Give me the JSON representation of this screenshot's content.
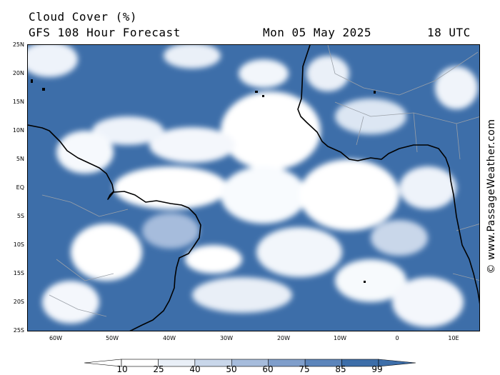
{
  "header": {
    "title": "Cloud Cover (%)",
    "subtitle": "GFS 108 Hour Forecast",
    "date": "Mon 05 May 2025",
    "time": "18 UTC"
  },
  "map": {
    "lat_labels": [
      "25N",
      "20N",
      "15N",
      "10N",
      "5N",
      "EQ",
      "5S",
      "10S",
      "15S",
      "20S",
      "25S"
    ],
    "lon_labels": [
      "60W",
      "50W",
      "40W",
      "30W",
      "20W",
      "10W",
      "0",
      "10E"
    ],
    "colors": {
      "ocean_cloud": "#3d6ea9",
      "coast": "#000000",
      "border": "#9aa0a8"
    }
  },
  "legend": {
    "labels": [
      "10",
      "25",
      "40",
      "50",
      "60",
      "75",
      "85",
      "99"
    ],
    "colors": [
      "#ffffff",
      "#ffffff",
      "#e9eff7",
      "#c9d7ea",
      "#a6bcdc",
      "#7f9ecb",
      "#5c85bb",
      "#3d6ea9",
      "#3d6ea9"
    ]
  },
  "watermark": "© www.PassageWeather.com"
}
